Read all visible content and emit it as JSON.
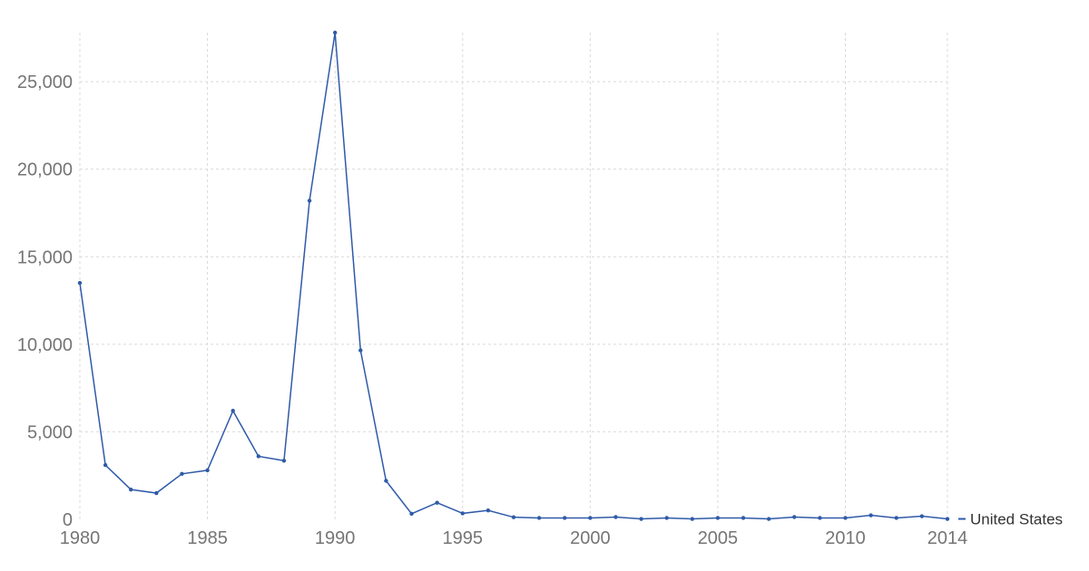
{
  "chart_data": {
    "type": "line",
    "title": "",
    "xlabel": "",
    "ylabel": "",
    "xlim": [
      1980,
      2014
    ],
    "ylim": [
      0,
      27800
    ],
    "x_ticks": [
      1980,
      1985,
      1990,
      1995,
      2000,
      2005,
      2010,
      2014
    ],
    "x_tick_labels": [
      "1980",
      "1985",
      "1990",
      "1995",
      "2000",
      "2005",
      "2010",
      "2014"
    ],
    "y_ticks": [
      0,
      5000,
      10000,
      15000,
      20000,
      25000
    ],
    "y_tick_labels": [
      "0",
      "5,000",
      "10,000",
      "15,000",
      "20,000",
      "25,000"
    ],
    "grid": true,
    "legend_position": "right-end-of-line",
    "series": [
      {
        "name": "United States",
        "color": "#2f5aa8",
        "x": [
          1980,
          1981,
          1982,
          1983,
          1984,
          1985,
          1986,
          1987,
          1988,
          1989,
          1990,
          1991,
          1992,
          1993,
          1994,
          1995,
          1996,
          1997,
          1998,
          1999,
          2000,
          2001,
          2002,
          2003,
          2004,
          2005,
          2006,
          2007,
          2008,
          2009,
          2010,
          2011,
          2012,
          2013,
          2014
        ],
        "values": [
          13500,
          3100,
          1700,
          1500,
          2600,
          2800,
          6200,
          3600,
          3350,
          18200,
          27800,
          9650,
          2200,
          320,
          950,
          340,
          510,
          120,
          80,
          80,
          80,
          130,
          25,
          80,
          25,
          80,
          80,
          25,
          130,
          80,
          80,
          230,
          80,
          180,
          25
        ]
      }
    ]
  }
}
